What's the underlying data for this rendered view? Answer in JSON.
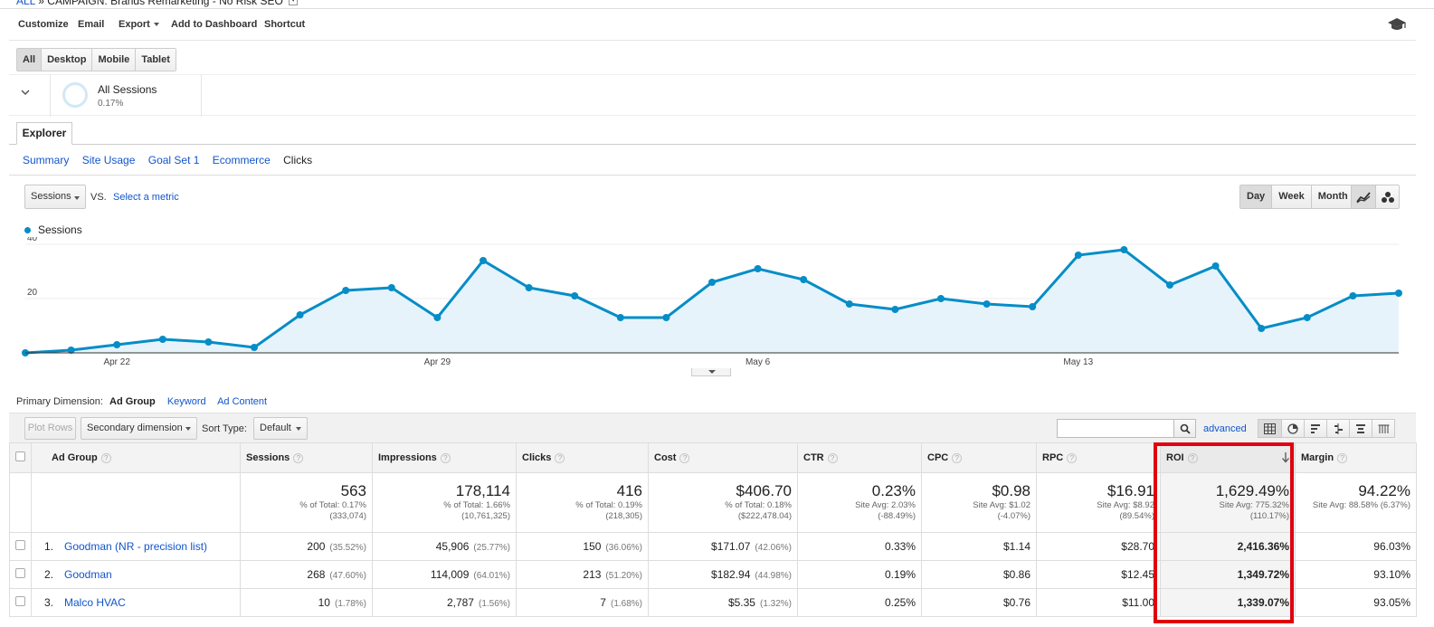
{
  "breadcrumb": {
    "all": "ALL",
    "sep": "»",
    "campaign": "CAMPAIGN: Brands Remarketing - No Risk SEO"
  },
  "actions": {
    "customize": "Customize",
    "email": "Email",
    "export": "Export",
    "add_dashboard": "Add to Dashboard",
    "shortcut": "Shortcut"
  },
  "devices": [
    "All",
    "Desktop",
    "Mobile",
    "Tablet"
  ],
  "segment": {
    "name": "All Sessions",
    "pct": "0.17%"
  },
  "explorer_tab": "Explorer",
  "subtabs": [
    "Summary",
    "Site Usage",
    "Goal Set 1",
    "Ecommerce",
    "Clicks"
  ],
  "chart_controls": {
    "metric": "Sessions",
    "vs": "VS.",
    "select_metric": "Select a metric",
    "periods": [
      "Day",
      "Week",
      "Month"
    ]
  },
  "chart_data": {
    "type": "area",
    "series": [
      {
        "name": "Sessions",
        "color": "#058dc7",
        "values": [
          0,
          1,
          3,
          5,
          4,
          2,
          14,
          23,
          24,
          13,
          34,
          24,
          21,
          13,
          13,
          26,
          31,
          27,
          18,
          16,
          20,
          18,
          17,
          36,
          38,
          25,
          32,
          9,
          13,
          21,
          22
        ]
      }
    ],
    "x_ticks": [
      {
        "index": 2,
        "label": "Apr 22"
      },
      {
        "index": 9,
        "label": "Apr 29"
      },
      {
        "index": 16,
        "label": "May 6"
      },
      {
        "index": 23,
        "label": "May 13"
      }
    ],
    "y_ticks": [
      20,
      40
    ],
    "ylim": [
      0,
      40
    ]
  },
  "primary_dimension": {
    "label": "Primary Dimension:",
    "current": "Ad Group",
    "options": [
      "Keyword",
      "Ad Content"
    ]
  },
  "table_toolbar": {
    "plot_rows": "Plot Rows",
    "secondary_dimension": "Secondary dimension",
    "sort_type_label": "Sort Type:",
    "sort_type": "Default",
    "advanced": "advanced"
  },
  "table": {
    "headers": [
      "Ad Group",
      "Sessions",
      "Impressions",
      "Clicks",
      "Cost",
      "CTR",
      "CPC",
      "RPC",
      "ROI",
      "Margin"
    ],
    "help": "?",
    "totals": [
      {
        "big": "563",
        "l1": "% of Total: 0.17%",
        "l2": "(333,074)"
      },
      {
        "big": "178,114",
        "l1": "% of Total: 1.66%",
        "l2": "(10,761,325)"
      },
      {
        "big": "416",
        "l1": "% of Total: 0.19%",
        "l2": "(218,305)"
      },
      {
        "big": "$406.70",
        "l1": "% of Total: 0.18%",
        "l2": "($222,478.04)"
      },
      {
        "big": "0.23%",
        "l1": "Site Avg: 2.03%",
        "l2": "(-88.49%)"
      },
      {
        "big": "$0.98",
        "l1": "Site Avg: $1.02",
        "l2": "(-4.07%)"
      },
      {
        "big": "$16.91",
        "l1": "Site Avg: $8.92",
        "l2": "(89.54%)"
      },
      {
        "big": "1,629.49%",
        "l1": "Site Avg: 775.32%",
        "l2": "(110.17%)"
      },
      {
        "big": "94.22%",
        "l1": "Site Avg: 88.58% (6.37%)",
        "l2": ""
      }
    ],
    "rows": [
      {
        "idx": "1.",
        "name": "Goodman (NR - precision list)",
        "sessions": "200",
        "sessions_pct": "(35.52%)",
        "impressions": "45,906",
        "impressions_pct": "(25.77%)",
        "clicks": "150",
        "clicks_pct": "(36.06%)",
        "cost": "$171.07",
        "cost_pct": "(42.06%)",
        "ctr": "0.33%",
        "cpc": "$1.14",
        "rpc": "$28.70",
        "roi": "2,416.36%",
        "margin": "96.03%"
      },
      {
        "idx": "2.",
        "name": "Goodman",
        "sessions": "268",
        "sessions_pct": "(47.60%)",
        "impressions": "114,009",
        "impressions_pct": "(64.01%)",
        "clicks": "213",
        "clicks_pct": "(51.20%)",
        "cost": "$182.94",
        "cost_pct": "(44.98%)",
        "ctr": "0.19%",
        "cpc": "$0.86",
        "rpc": "$12.45",
        "roi": "1,349.72%",
        "margin": "93.10%"
      },
      {
        "idx": "3.",
        "name": "Malco HVAC",
        "sessions": "10",
        "sessions_pct": "(1.78%)",
        "impressions": "2,787",
        "impressions_pct": "(1.56%)",
        "clicks": "7",
        "clicks_pct": "(1.68%)",
        "cost": "$5.35",
        "cost_pct": "(1.32%)",
        "ctr": "0.25%",
        "cpc": "$0.76",
        "rpc": "$11.00",
        "roi": "1,339.07%",
        "margin": "93.05%"
      }
    ]
  },
  "highlight_color": "#e0000f"
}
